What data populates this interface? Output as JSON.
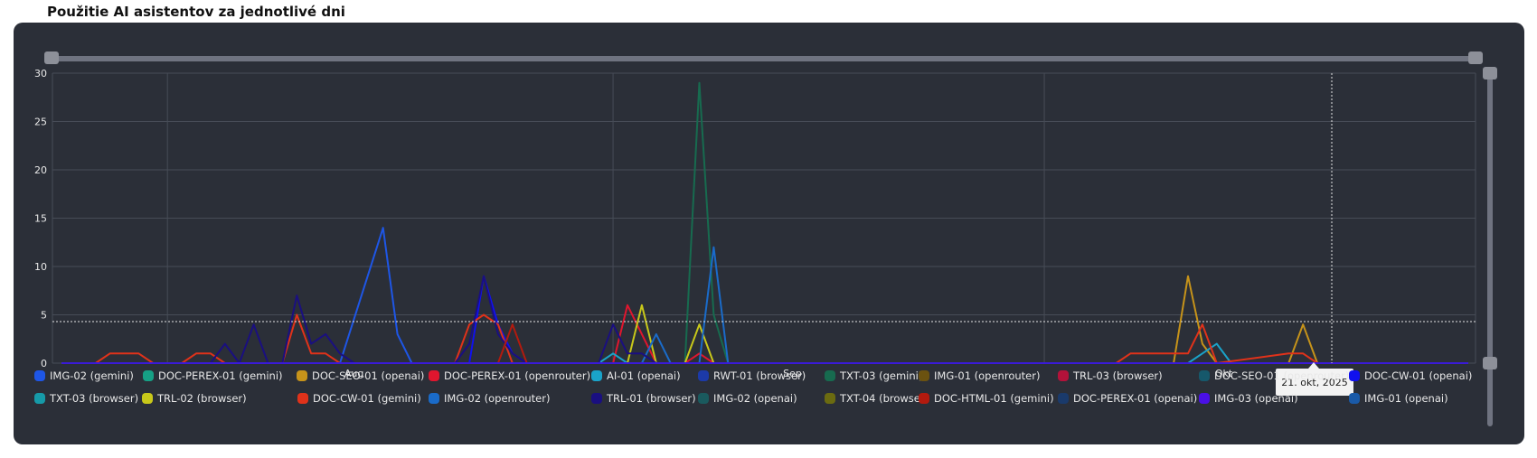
{
  "page": {
    "title": "Použitie AI asistentov za jednotlivé dni"
  },
  "chart_data": {
    "type": "line",
    "title": "Použitie AI asistentov za jednotlivé dni",
    "xlabel": "",
    "ylabel": "",
    "ylim": [
      0,
      30
    ],
    "yticks": [
      0,
      5,
      10,
      15,
      20,
      25,
      30
    ],
    "grid": true,
    "legend_position": "bottom",
    "x_start": "2025-07-24",
    "x_end": "2025-10-31",
    "x_ticks": [
      {
        "date": "2025-08-01",
        "label": "Aug"
      },
      {
        "date": "2025-09-01",
        "label": "Sep"
      },
      {
        "date": "2025-10-01",
        "label": "Okt"
      }
    ],
    "crosshair": {
      "date": "2025-10-21",
      "label": "21. okt, 2025",
      "y": 4.3
    },
    "series": [
      {
        "name": "IMG-02 (gemini)",
        "color": "#1e56e6",
        "points": [
          [
            "2025-08-13",
            0
          ],
          [
            "2025-08-16",
            14
          ],
          [
            "2025-08-17",
            3
          ],
          [
            "2025-08-18",
            0
          ]
        ]
      },
      {
        "name": "DOC-PEREX-01 (gemini)",
        "color": "#16a085",
        "points": []
      },
      {
        "name": "DOC-SEO-01 (openai)",
        "color": "#c6931a",
        "points": [
          [
            "2025-10-10",
            0
          ],
          [
            "2025-10-11",
            9
          ],
          [
            "2025-10-12",
            2
          ],
          [
            "2025-10-13",
            0
          ],
          [
            "2025-10-15",
            0
          ],
          [
            "2025-10-18",
            0
          ],
          [
            "2025-10-19",
            4
          ],
          [
            "2025-10-20",
            0
          ]
        ]
      },
      {
        "name": "DOC-PEREX-01 (openrouter)",
        "color": "#e0162e",
        "points": [
          [
            "2025-09-01",
            0
          ],
          [
            "2025-09-02",
            6
          ],
          [
            "2025-09-03",
            3
          ],
          [
            "2025-09-04",
            0
          ],
          [
            "2025-09-06",
            0
          ],
          [
            "2025-09-07",
            1
          ],
          [
            "2025-09-08",
            0
          ]
        ]
      },
      {
        "name": "AI-01 (openai)",
        "color": "#1aa3c9",
        "points": [
          [
            "2025-08-31",
            0
          ],
          [
            "2025-09-01",
            1
          ],
          [
            "2025-09-02",
            0
          ],
          [
            "2025-10-11",
            0
          ],
          [
            "2025-10-12",
            1
          ],
          [
            "2025-10-13",
            2
          ],
          [
            "2025-10-14",
            0
          ]
        ]
      },
      {
        "name": "RWT-01 (browser)",
        "color": "#1c3aa8",
        "points": []
      },
      {
        "name": "TXT-03 (gemini)",
        "color": "#176b4f",
        "points": [
          [
            "2025-09-06",
            0
          ],
          [
            "2025-09-07",
            29
          ],
          [
            "2025-09-08",
            5
          ],
          [
            "2025-09-09",
            0
          ]
        ]
      },
      {
        "name": "IMG-01 (openrouter)",
        "color": "#6b5210",
        "points": []
      },
      {
        "name": "TRL-03 (browser)",
        "color": "#b3123a",
        "points": []
      },
      {
        "name": "DOC-SEO-01 (openrouter)",
        "color": "#16586b",
        "points": []
      },
      {
        "name": "DOC-CW-01 (openai)",
        "color": "#1010ee",
        "points": [
          [
            "2025-08-22",
            0
          ],
          [
            "2025-08-23",
            9
          ],
          [
            "2025-08-24",
            4
          ],
          [
            "2025-08-25",
            1
          ],
          [
            "2025-08-26",
            0
          ]
        ]
      },
      {
        "name": "TXT-03 (browser)",
        "color": "#169aa8",
        "points": []
      },
      {
        "name": "TRL-02 (browser)",
        "color": "#c8c81a",
        "points": [
          [
            "2025-09-02",
            0
          ],
          [
            "2025-09-03",
            6
          ],
          [
            "2025-09-04",
            0
          ],
          [
            "2025-09-06",
            0
          ],
          [
            "2025-09-07",
            4
          ],
          [
            "2025-09-08",
            0
          ]
        ]
      },
      {
        "name": "DOC-CW-01 (gemini)",
        "color": "#e0321a",
        "points": [
          [
            "2025-07-27",
            0
          ],
          [
            "2025-07-28",
            1
          ],
          [
            "2025-07-30",
            1
          ],
          [
            "2025-07-31",
            0
          ],
          [
            "2025-08-02",
            0
          ],
          [
            "2025-08-03",
            1
          ],
          [
            "2025-08-04",
            1
          ],
          [
            "2025-08-05",
            0
          ],
          [
            "2025-08-09",
            0
          ],
          [
            "2025-08-10",
            5
          ],
          [
            "2025-08-11",
            1
          ],
          [
            "2025-08-12",
            1
          ],
          [
            "2025-08-13",
            0
          ],
          [
            "2025-08-21",
            0
          ],
          [
            "2025-08-22",
            4
          ],
          [
            "2025-08-23",
            5
          ],
          [
            "2025-08-24",
            4
          ],
          [
            "2025-08-25",
            0
          ],
          [
            "2025-10-06",
            0
          ],
          [
            "2025-10-07",
            1
          ],
          [
            "2025-10-11",
            1
          ],
          [
            "2025-10-12",
            4
          ],
          [
            "2025-10-13",
            0
          ],
          [
            "2025-10-18",
            1
          ],
          [
            "2025-10-19",
            1
          ],
          [
            "2025-10-20",
            0
          ]
        ]
      },
      {
        "name": "IMG-02 (openrouter)",
        "color": "#1a6bc9",
        "points": [
          [
            "2025-09-03",
            0
          ],
          [
            "2025-09-04",
            3
          ],
          [
            "2025-09-05",
            0
          ],
          [
            "2025-09-07",
            0
          ],
          [
            "2025-09-08",
            12
          ],
          [
            "2025-09-09",
            0
          ]
        ]
      },
      {
        "name": "TRL-01 (browser)",
        "color": "#1a0f80",
        "points": [
          [
            "2025-08-04",
            0
          ],
          [
            "2025-08-05",
            2
          ],
          [
            "2025-08-06",
            0
          ],
          [
            "2025-08-07",
            4
          ],
          [
            "2025-08-08",
            0
          ],
          [
            "2025-08-09",
            0
          ],
          [
            "2025-08-10",
            7
          ],
          [
            "2025-08-11",
            2
          ],
          [
            "2025-08-12",
            3
          ],
          [
            "2025-08-13",
            1
          ],
          [
            "2025-08-14",
            0
          ],
          [
            "2025-08-21",
            0
          ],
          [
            "2025-08-22",
            2
          ],
          [
            "2025-08-23",
            9
          ],
          [
            "2025-08-24",
            3
          ],
          [
            "2025-08-25",
            1
          ],
          [
            "2025-08-26",
            0
          ],
          [
            "2025-08-31",
            0
          ],
          [
            "2025-09-01",
            4
          ],
          [
            "2025-09-02",
            1
          ],
          [
            "2025-09-03",
            1
          ],
          [
            "2025-09-04",
            0
          ]
        ]
      },
      {
        "name": "IMG-02 (openai)",
        "color": "#1a5a5e",
        "points": []
      },
      {
        "name": "TXT-04 (browser)",
        "color": "#6b6b10",
        "points": []
      },
      {
        "name": "DOC-HTML-01 (gemini)",
        "color": "#b31a0e",
        "points": [
          [
            "2025-08-24",
            0
          ],
          [
            "2025-08-25",
            4
          ],
          [
            "2025-08-26",
            0
          ]
        ]
      },
      {
        "name": "DOC-PEREX-01 (openai)",
        "color": "#1a3a6b",
        "points": []
      },
      {
        "name": "IMG-03 (openai)",
        "color": "#4a10e6",
        "points": []
      },
      {
        "name": "IMG-01 (openai)",
        "color": "#1a5aa8",
        "points": []
      }
    ]
  }
}
